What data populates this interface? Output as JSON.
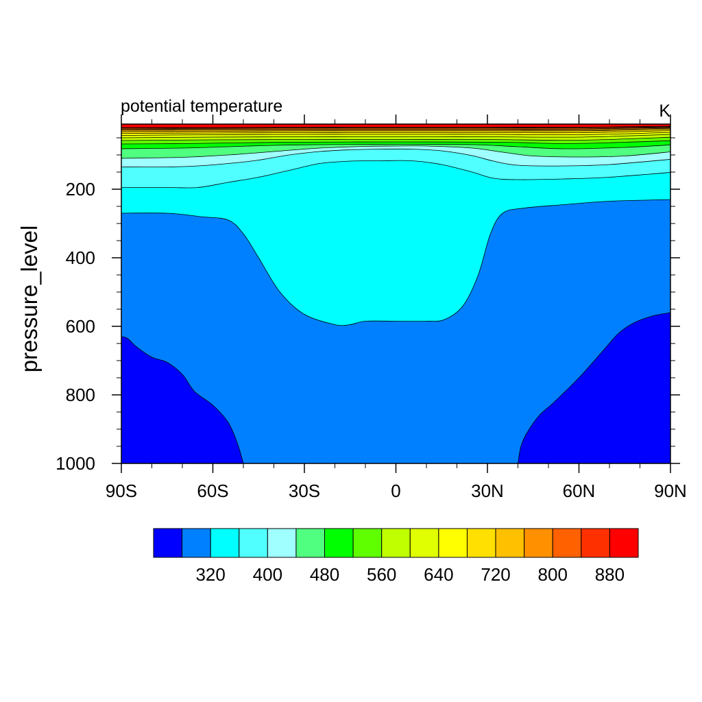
{
  "chart_data": {
    "type": "contour",
    "title": "potential temperature",
    "units": "K",
    "xlabel": "",
    "ylabel": "pressure_level",
    "x_axis": {
      "range": [
        -90,
        90
      ],
      "ticks": [
        {
          "value": -90,
          "label": "90S"
        },
        {
          "value": -60,
          "label": "60S"
        },
        {
          "value": -30,
          "label": "30S"
        },
        {
          "value": 0,
          "label": "0"
        },
        {
          "value": 30,
          "label": "30N"
        },
        {
          "value": 60,
          "label": "60N"
        },
        {
          "value": 90,
          "label": "90N"
        }
      ]
    },
    "y_axis": {
      "range": [
        1000,
        10
      ],
      "inverted": true,
      "ticks": [
        {
          "value": 200,
          "label": "200"
        },
        {
          "value": 400,
          "label": "400"
        },
        {
          "value": 600,
          "label": "600"
        },
        {
          "value": 800,
          "label": "800"
        },
        {
          "value": 1000,
          "label": "1000"
        }
      ]
    },
    "contour_levels": [
      280,
      320,
      360,
      400,
      440,
      480,
      520,
      560,
      600,
      640,
      680,
      720,
      760,
      800,
      840,
      880,
      920
    ],
    "bands": [
      {
        "color": "#0000ff",
        "from": null,
        "to": 280
      },
      {
        "color": "#0080ff",
        "from": 280,
        "to": 320
      },
      {
        "color": "#00ffff",
        "from": 320,
        "to": 360
      },
      {
        "color": "#50ffff",
        "from": 360,
        "to": 400
      },
      {
        "color": "#a0ffff",
        "from": 400,
        "to": 440
      },
      {
        "color": "#50ff80",
        "from": 440,
        "to": 480
      },
      {
        "color": "#00ff00",
        "from": 480,
        "to": 520
      },
      {
        "color": "#60ff00",
        "from": 520,
        "to": 560
      },
      {
        "color": "#c0ff00",
        "from": 560,
        "to": 600
      },
      {
        "color": "#e0ff00",
        "from": 600,
        "to": 640
      },
      {
        "color": "#ffff00",
        "from": 640,
        "to": 680
      },
      {
        "color": "#ffe000",
        "from": 680,
        "to": 720
      },
      {
        "color": "#ffc000",
        "from": 720,
        "to": 760
      },
      {
        "color": "#ff9000",
        "from": 760,
        "to": 800
      },
      {
        "color": "#ff6000",
        "from": 800,
        "to": 840
      },
      {
        "color": "#ff3000",
        "from": 840,
        "to": 880
      },
      {
        "color": "#ff0000",
        "from": 880,
        "to": null
      }
    ],
    "colorbar_labels": [
      "320",
      "400",
      "480",
      "560",
      "640",
      "720",
      "800",
      "880"
    ],
    "boundaries": [
      {
        "level": 280,
        "side": "left",
        "points": [
          [
            -90,
            1000
          ],
          [
            -90,
            630
          ],
          [
            -88,
            635
          ],
          [
            -85,
            660
          ],
          [
            -80,
            690
          ],
          [
            -75,
            705
          ],
          [
            -70,
            740
          ],
          [
            -66,
            790
          ],
          [
            -60,
            830
          ],
          [
            -55,
            880
          ],
          [
            -52,
            940
          ],
          [
            -50,
            1000
          ]
        ]
      },
      {
        "level": 280,
        "side": "right",
        "points": [
          [
            40,
            1000
          ],
          [
            41,
            950
          ],
          [
            43,
            910
          ],
          [
            47,
            860
          ],
          [
            52,
            820
          ],
          [
            60,
            750
          ],
          [
            68,
            670
          ],
          [
            73,
            620
          ],
          [
            78,
            590
          ],
          [
            84,
            570
          ],
          [
            90,
            560
          ]
        ]
      },
      {
        "level": 320,
        "points": [
          [
            -90,
            270
          ],
          [
            -75,
            270
          ],
          [
            -64,
            280
          ],
          [
            -55,
            290
          ],
          [
            -50,
            330
          ],
          [
            -45,
            400
          ],
          [
            -38,
            500
          ],
          [
            -30,
            565
          ],
          [
            -20,
            595
          ],
          [
            -15,
            595
          ],
          [
            -10,
            585
          ],
          [
            0,
            585
          ],
          [
            10,
            585
          ],
          [
            16,
            580
          ],
          [
            22,
            540
          ],
          [
            27,
            450
          ],
          [
            31,
            330
          ],
          [
            35,
            270
          ],
          [
            42,
            255
          ],
          [
            55,
            245
          ],
          [
            70,
            235
          ],
          [
            90,
            230
          ]
        ]
      },
      {
        "level": 360,
        "points": [
          [
            -90,
            195
          ],
          [
            -75,
            195
          ],
          [
            -65,
            195
          ],
          [
            -55,
            180
          ],
          [
            -45,
            165
          ],
          [
            -35,
            145
          ],
          [
            -25,
            125
          ],
          [
            -15,
            118
          ],
          [
            -5,
            117
          ],
          [
            5,
            117
          ],
          [
            15,
            128
          ],
          [
            25,
            150
          ],
          [
            32,
            168
          ],
          [
            40,
            172
          ],
          [
            55,
            170
          ],
          [
            70,
            165
          ],
          [
            90,
            150
          ]
        ]
      },
      {
        "level": 400,
        "points": [
          [
            -90,
            135
          ],
          [
            -75,
            135
          ],
          [
            -65,
            132
          ],
          [
            -55,
            125
          ],
          [
            -45,
            115
          ],
          [
            -35,
            100
          ],
          [
            -25,
            90
          ],
          [
            -15,
            85
          ],
          [
            -5,
            83
          ],
          [
            5,
            83
          ],
          [
            15,
            88
          ],
          [
            25,
            102
          ],
          [
            32,
            118
          ],
          [
            40,
            130
          ],
          [
            55,
            132
          ],
          [
            70,
            128
          ],
          [
            90,
            112
          ]
        ]
      },
      {
        "level": 440,
        "points": [
          [
            -90,
            110
          ],
          [
            -70,
            107
          ],
          [
            -55,
            100
          ],
          [
            -40,
            90
          ],
          [
            -25,
            80
          ],
          [
            -10,
            75
          ],
          [
            0,
            74
          ],
          [
            10,
            74
          ],
          [
            25,
            80
          ],
          [
            35,
            92
          ],
          [
            45,
            103
          ],
          [
            60,
            106
          ],
          [
            75,
            103
          ],
          [
            90,
            90
          ]
        ]
      },
      {
        "level": 480,
        "points": [
          [
            -90,
            82
          ],
          [
            -70,
            80
          ],
          [
            -55,
            76
          ],
          [
            -40,
            72
          ],
          [
            -25,
            70
          ],
          [
            0,
            69
          ],
          [
            25,
            70
          ],
          [
            40,
            76
          ],
          [
            55,
            82
          ],
          [
            75,
            78
          ],
          [
            90,
            70
          ]
        ]
      },
      {
        "level": 520,
        "points": [
          [
            -90,
            68
          ],
          [
            -70,
            67
          ],
          [
            -55,
            65
          ],
          [
            -35,
            63
          ],
          [
            0,
            62
          ],
          [
            35,
            63
          ],
          [
            55,
            67
          ],
          [
            75,
            63
          ],
          [
            90,
            58
          ]
        ]
      },
      {
        "level": 560,
        "points": [
          [
            -90,
            58
          ],
          [
            -60,
            56
          ],
          [
            -30,
            55
          ],
          [
            0,
            55
          ],
          [
            30,
            55
          ],
          [
            60,
            57
          ],
          [
            90,
            48
          ]
        ]
      },
      {
        "level": 600,
        "points": [
          [
            -90,
            50
          ],
          [
            -60,
            48
          ],
          [
            -30,
            47
          ],
          [
            0,
            47
          ],
          [
            30,
            47
          ],
          [
            60,
            48
          ],
          [
            90,
            40
          ]
        ]
      },
      {
        "level": 640,
        "points": [
          [
            -90,
            43
          ],
          [
            -60,
            41
          ],
          [
            -30,
            40
          ],
          [
            0,
            40
          ],
          [
            30,
            40
          ],
          [
            60,
            41
          ],
          [
            90,
            34
          ]
        ]
      },
      {
        "level": 680,
        "points": [
          [
            -90,
            37
          ],
          [
            -60,
            36
          ],
          [
            -30,
            35
          ],
          [
            0,
            35
          ],
          [
            30,
            35
          ],
          [
            60,
            35
          ],
          [
            90,
            29
          ]
        ]
      },
      {
        "level": 720,
        "points": [
          [
            -90,
            32
          ],
          [
            -60,
            31
          ],
          [
            -30,
            30
          ],
          [
            0,
            30
          ],
          [
            30,
            30
          ],
          [
            60,
            30
          ],
          [
            90,
            25
          ]
        ]
      },
      {
        "level": 760,
        "points": [
          [
            -90,
            28
          ],
          [
            -60,
            27
          ],
          [
            -30,
            27
          ],
          [
            0,
            27
          ],
          [
            30,
            27
          ],
          [
            60,
            27
          ],
          [
            90,
            22
          ]
        ]
      },
      {
        "level": 800,
        "points": [
          [
            -90,
            25
          ],
          [
            -60,
            24
          ],
          [
            -30,
            24
          ],
          [
            0,
            24
          ],
          [
            30,
            24
          ],
          [
            60,
            24
          ],
          [
            90,
            20
          ]
        ]
      },
      {
        "level": 840,
        "points": [
          [
            -90,
            22
          ],
          [
            -60,
            22
          ],
          [
            -30,
            21
          ],
          [
            0,
            21
          ],
          [
            30,
            21
          ],
          [
            60,
            21
          ],
          [
            90,
            18
          ]
        ]
      },
      {
        "level": 880,
        "points": [
          [
            -90,
            20
          ],
          [
            -60,
            20
          ],
          [
            -30,
            19
          ],
          [
            0,
            19
          ],
          [
            30,
            19
          ],
          [
            60,
            19
          ],
          [
            90,
            16
          ]
        ]
      }
    ],
    "grid": false,
    "legend": "colorbar-bottom"
  }
}
